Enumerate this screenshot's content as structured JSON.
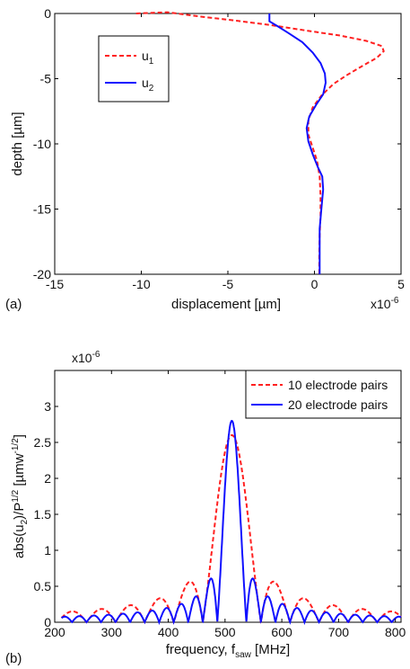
{
  "chart_data": [
    {
      "panel_label": "(a)",
      "type": "line",
      "xlabel": "displacement  [µm]",
      "ylabel": "depth  [µm]",
      "x_multiplier": "x10",
      "x_multiplier_exp": "-6",
      "xlim": [
        -15,
        5
      ],
      "ylim": [
        -20,
        0
      ],
      "xticks": [
        -15,
        -10,
        -5,
        0,
        5
      ],
      "yticks": [
        0,
        -5,
        -10,
        -15,
        -20
      ],
      "grid": false,
      "legend": "upper-left",
      "series": [
        {
          "name": "u",
          "name_sub": "1",
          "color": "#ff2020",
          "style": "dashed",
          "points": [
            [
              -10.3,
              0
            ],
            [
              -8.5,
              0.1
            ],
            [
              -6.5,
              -0.25
            ],
            [
              -4.5,
              -0.55
            ],
            [
              -2.5,
              -0.9
            ],
            [
              -0.5,
              -1.3
            ],
            [
              1.5,
              -1.7
            ],
            [
              3.0,
              -2.1
            ],
            [
              3.9,
              -2.5
            ],
            [
              4.0,
              -2.9
            ],
            [
              3.6,
              -3.4
            ],
            [
              2.8,
              -4.0
            ],
            [
              1.9,
              -4.7
            ],
            [
              1.1,
              -5.4
            ],
            [
              0.4,
              -6.3
            ],
            [
              -0.1,
              -7.2
            ],
            [
              -0.35,
              -8.2
            ],
            [
              -0.35,
              -9.3
            ],
            [
              -0.1,
              -10.3
            ],
            [
              0.15,
              -11.3
            ],
            [
              0.3,
              -12.5
            ],
            [
              0.35,
              -14
            ],
            [
              0.35,
              -15.5
            ],
            [
              0.3,
              -17
            ],
            [
              0.28,
              -18.5
            ],
            [
              0.28,
              -20
            ]
          ]
        },
        {
          "name": "u",
          "name_sub": "2",
          "color": "#1010ff",
          "style": "solid",
          "points": [
            [
              -2.6,
              0
            ],
            [
              -2.6,
              -0.6
            ],
            [
              -2.1,
              -1.0
            ],
            [
              -1.5,
              -1.5
            ],
            [
              -0.7,
              -2.2
            ],
            [
              -0.1,
              -3.0
            ],
            [
              0.35,
              -3.8
            ],
            [
              0.6,
              -4.6
            ],
            [
              0.65,
              -5.3
            ],
            [
              0.5,
              -6.2
            ],
            [
              0.1,
              -7.0
            ],
            [
              -0.3,
              -7.9
            ],
            [
              -0.45,
              -8.8
            ],
            [
              -0.35,
              -9.8
            ],
            [
              -0.1,
              -10.8
            ],
            [
              0.2,
              -11.8
            ],
            [
              0.45,
              -12.5
            ],
            [
              0.5,
              -13.5
            ],
            [
              0.4,
              -15
            ],
            [
              0.3,
              -16.5
            ],
            [
              0.3,
              -18
            ],
            [
              0.3,
              -20
            ]
          ]
        }
      ]
    },
    {
      "panel_label": "(b)",
      "type": "line",
      "xlabel": "frequency, f",
      "xlabel_sub": "saw",
      "xlabel_unit": " [MHz]",
      "ylabel": "abs(u",
      "ylabel_sub": "2",
      "ylabel_mid": ")/P",
      "ylabel_sup": "1/2",
      "ylabel_unit": " [µmw",
      "ylabel_unit_sup": "-1/2",
      "ylabel_end": "]",
      "y_multiplier": "x10",
      "y_multiplier_exp": "-6",
      "xlim": [
        200,
        810
      ],
      "ylim": [
        0,
        3.5
      ],
      "xticks": [
        200,
        300,
        400,
        500,
        600,
        700,
        800
      ],
      "yticks": [
        0,
        0.5,
        1,
        1.5,
        2,
        2.5,
        3
      ],
      "grid": false,
      "legend": "top-right",
      "series": [
        {
          "name": "10 electrode pairs",
          "color": "#ff2020",
          "style": "dashed",
          "center": 512,
          "peak": 2.6,
          "null_spacing": 51.2
        },
        {
          "name": "20 electrode pairs",
          "color": "#1010ff",
          "style": "solid",
          "center": 512,
          "peak": 2.8,
          "null_spacing": 25.6
        }
      ]
    }
  ]
}
